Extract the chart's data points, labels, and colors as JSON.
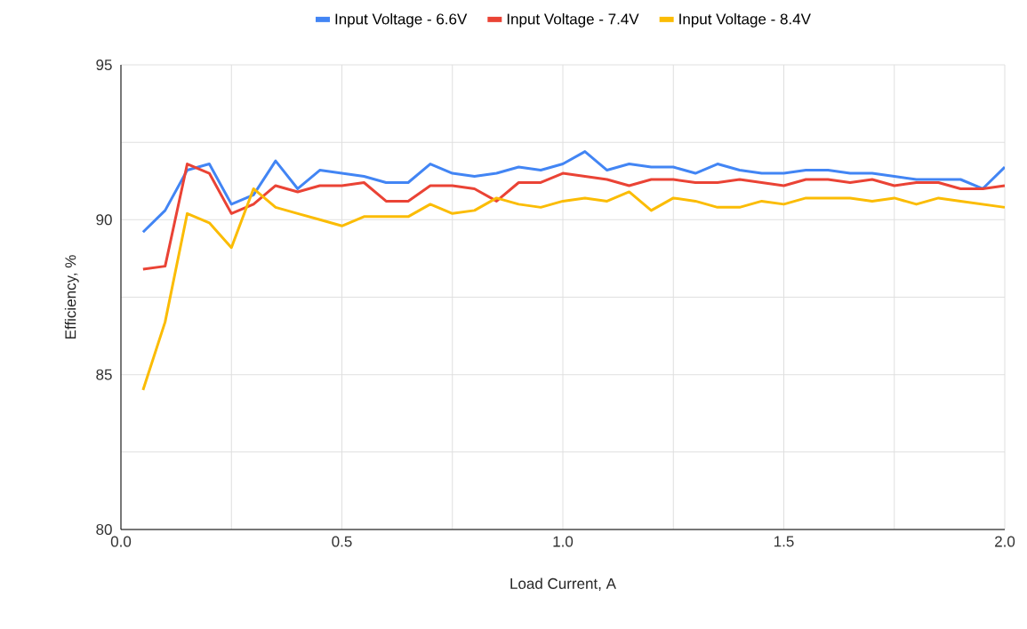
{
  "chart_data": {
    "type": "line",
    "xlabel": "Load Current, A",
    "ylabel": "Efficiency, %",
    "x": [
      0.05,
      0.1,
      0.15,
      0.2,
      0.25,
      0.3,
      0.35,
      0.4,
      0.45,
      0.5,
      0.55,
      0.6,
      0.65,
      0.7,
      0.75,
      0.8,
      0.85,
      0.9,
      0.95,
      1.0,
      1.05,
      1.1,
      1.15,
      1.2,
      1.25,
      1.3,
      1.35,
      1.4,
      1.45,
      1.5,
      1.55,
      1.6,
      1.65,
      1.7,
      1.75,
      1.8,
      1.85,
      1.9,
      1.95,
      2.0
    ],
    "series": [
      {
        "name": "Input Voltage - 6.6V",
        "color": "#4285f4",
        "values": [
          89.6,
          90.3,
          91.6,
          91.8,
          90.5,
          90.8,
          91.9,
          91.0,
          91.6,
          91.5,
          91.4,
          91.2,
          91.2,
          91.8,
          91.5,
          91.4,
          91.5,
          91.7,
          91.6,
          91.8,
          92.2,
          91.6,
          91.8,
          91.7,
          91.7,
          91.5,
          91.8,
          91.6,
          91.5,
          91.5,
          91.6,
          91.6,
          91.5,
          91.5,
          91.4,
          91.3,
          91.3,
          91.3,
          91.0,
          91.7
        ]
      },
      {
        "name": "Input Voltage - 7.4V",
        "color": "#ea4335",
        "values": [
          88.4,
          88.5,
          91.8,
          91.5,
          90.2,
          90.5,
          91.1,
          90.9,
          91.1,
          91.1,
          91.2,
          90.6,
          90.6,
          91.1,
          91.1,
          91.0,
          90.6,
          91.2,
          91.2,
          91.5,
          91.4,
          91.3,
          91.1,
          91.3,
          91.3,
          91.2,
          91.2,
          91.3,
          91.2,
          91.1,
          91.3,
          91.3,
          91.2,
          91.3,
          91.1,
          91.2,
          91.2,
          91.0,
          91.0,
          91.1
        ]
      },
      {
        "name": "Input Voltage - 8.4V",
        "color": "#fbbc04",
        "values": [
          84.5,
          86.7,
          90.2,
          89.9,
          89.1,
          91.0,
          90.4,
          90.2,
          90.0,
          89.8,
          90.1,
          90.1,
          90.1,
          90.5,
          90.2,
          90.3,
          90.7,
          90.5,
          90.4,
          90.6,
          90.7,
          90.6,
          90.9,
          90.3,
          90.7,
          90.6,
          90.4,
          90.4,
          90.6,
          90.5,
          90.7,
          90.7,
          90.7,
          90.6,
          90.7,
          90.5,
          90.7,
          90.6,
          90.5,
          90.4
        ]
      }
    ],
    "xlim": [
      0,
      2.0
    ],
    "ylim": [
      80,
      95
    ],
    "xticks": [
      {
        "value": 0,
        "label": "0.0"
      },
      {
        "value": 0.25,
        "label": null
      },
      {
        "value": 0.5,
        "label": "0.5"
      },
      {
        "value": 0.75,
        "label": null
      },
      {
        "value": 1.0,
        "label": "1.0"
      },
      {
        "value": 1.25,
        "label": null
      },
      {
        "value": 1.5,
        "label": "1.5"
      },
      {
        "value": 1.75,
        "label": null
      },
      {
        "value": 2.0,
        "label": "2.0"
      }
    ],
    "yticks": [
      80,
      {
        "value": 82.5,
        "label": null
      },
      85,
      {
        "value": 87.5,
        "label": null
      },
      90,
      {
        "value": 92.5,
        "label": null
      },
      95
    ],
    "grid": true,
    "legend": "top",
    "marker": "none",
    "line_style": "solid"
  }
}
